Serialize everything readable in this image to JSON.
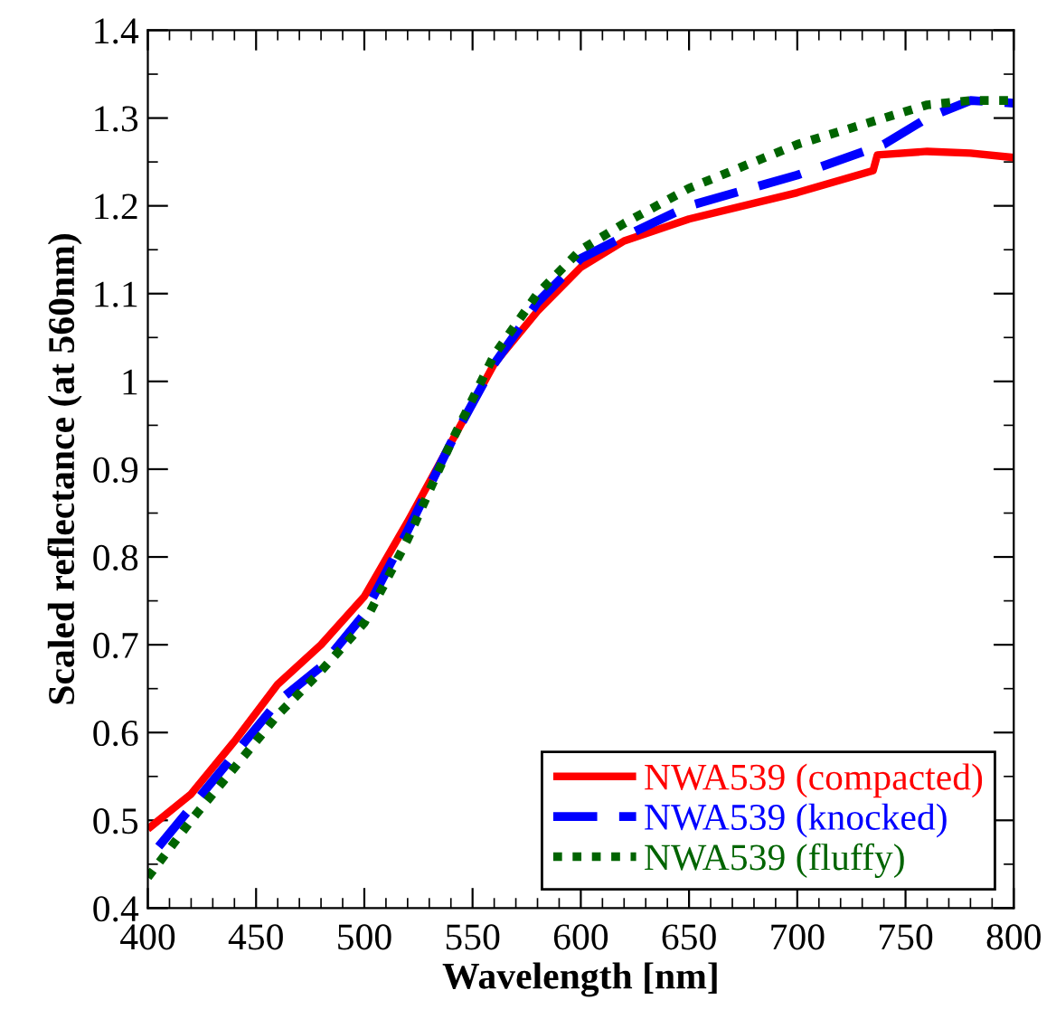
{
  "chart_data": {
    "type": "line",
    "xlabel": "Wavelength [nm]",
    "ylabel": "Scaled reflectance (at 560nm)",
    "xlim": [
      400,
      800
    ],
    "ylim": [
      0.4,
      1.4
    ],
    "xticks": [
      400,
      450,
      500,
      550,
      600,
      650,
      700,
      750,
      800
    ],
    "yticks": [
      0.4,
      0.5,
      0.6,
      0.7,
      0.8,
      0.9,
      1,
      1.1,
      1.2,
      1.3,
      1.4
    ],
    "grid": false,
    "legend": "bottom right",
    "marker": "none",
    "series": [
      {
        "name": "NWA539 (compacted)",
        "color": "#ff0000",
        "line_style": "solid",
        "x": [
          400,
          420,
          440,
          460,
          480,
          500,
          520,
          540,
          560,
          580,
          600,
          620,
          650,
          700,
          735,
          737,
          760,
          780,
          800
        ],
        "values": [
          0.49,
          0.53,
          0.59,
          0.655,
          0.7,
          0.755,
          0.84,
          0.93,
          1.02,
          1.08,
          1.13,
          1.16,
          1.185,
          1.215,
          1.24,
          1.258,
          1.262,
          1.26,
          1.255
        ]
      },
      {
        "name": "NWA539 (knocked)",
        "color": "#0000ff",
        "line_style": "dashed",
        "x": [
          405,
          420,
          440,
          460,
          480,
          500,
          520,
          540,
          560,
          580,
          600,
          620,
          650,
          700,
          740,
          760,
          780,
          800
        ],
        "values": [
          0.47,
          0.515,
          0.575,
          0.635,
          0.675,
          0.735,
          0.83,
          0.93,
          1.02,
          1.09,
          1.14,
          1.165,
          1.2,
          1.235,
          1.27,
          1.3,
          1.32,
          1.317
        ]
      },
      {
        "name": "NWA539 (fluffy)",
        "color": "#006400",
        "line_style": "dotted",
        "x": [
          400,
          420,
          440,
          460,
          480,
          500,
          520,
          540,
          560,
          580,
          600,
          620,
          650,
          700,
          740,
          760,
          780,
          800
        ],
        "values": [
          0.435,
          0.5,
          0.56,
          0.62,
          0.67,
          0.725,
          0.82,
          0.93,
          1.03,
          1.1,
          1.15,
          1.18,
          1.22,
          1.27,
          1.3,
          1.315,
          1.32,
          1.32
        ]
      }
    ]
  }
}
